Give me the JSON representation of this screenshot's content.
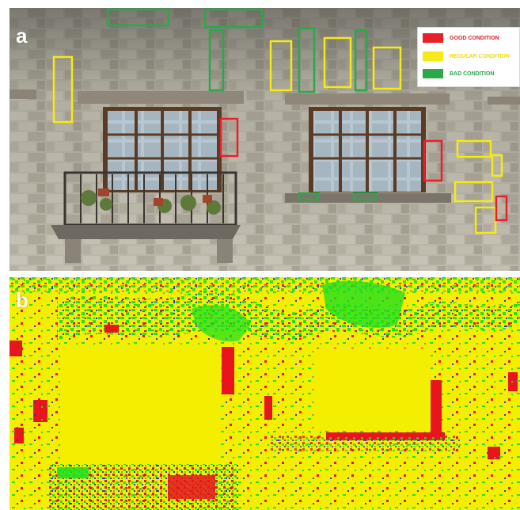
{
  "figure": {
    "panel_a": {
      "label": "a"
    },
    "panel_b": {
      "label": "b"
    },
    "legend": {
      "items": [
        {
          "label": "GOOD CONDITION",
          "color": "#e8202a"
        },
        {
          "label": "REGULAR CONDITION",
          "color": "#f5ea14"
        },
        {
          "label": "BAD CONDITION",
          "color": "#2aa84a"
        }
      ]
    }
  },
  "colors": {
    "good": "#e8202a",
    "regular": "#f5ea14",
    "bad": "#2aa84a",
    "map_yellow": "#f4ef00",
    "map_green": "#22e11e",
    "map_red": "#e8141e",
    "map_blue": "#3a2fd0"
  }
}
